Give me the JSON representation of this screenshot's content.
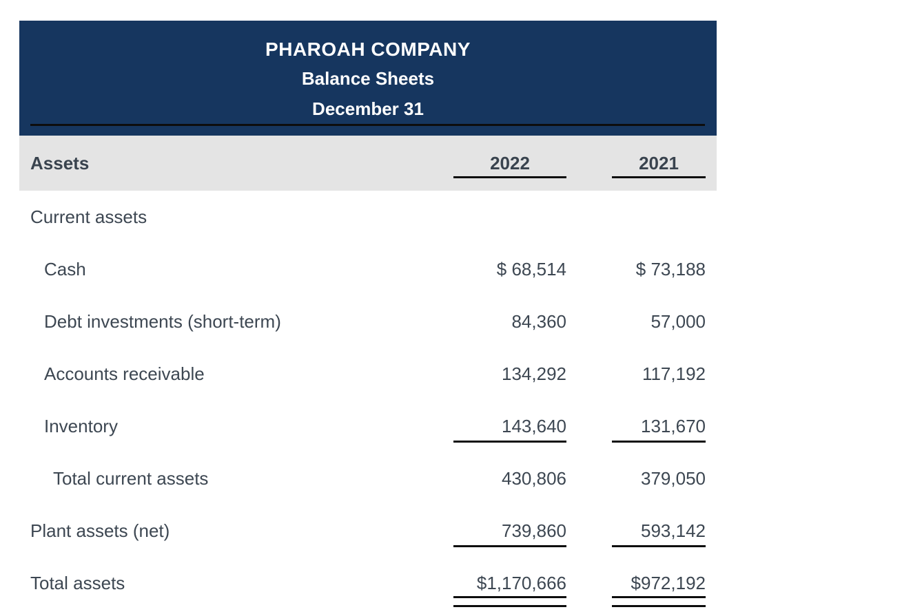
{
  "header": {
    "company": "PHAROAH COMPANY",
    "subtitle": "Balance Sheets",
    "date_line": "December 31"
  },
  "columns": {
    "section": "Assets",
    "year1": "2022",
    "year2": "2021"
  },
  "rows": [
    {
      "label": "Current assets",
      "v2022": "",
      "v2021": ""
    },
    {
      "label": "Cash",
      "v2022": "$ 68,514",
      "v2021": "$ 73,188"
    },
    {
      "label": "Debt investments (short-term)",
      "v2022": "84,360",
      "v2021": "57,000"
    },
    {
      "label": "Accounts receivable",
      "v2022": "134,292",
      "v2021": "117,192"
    },
    {
      "label": "Inventory",
      "v2022": "143,640",
      "v2021": "131,670"
    },
    {
      "label": "Total current assets",
      "v2022": "430,806",
      "v2021": "379,050"
    },
    {
      "label": "Plant assets (net)",
      "v2022": "739,860",
      "v2021": "593,142"
    },
    {
      "label": "Total assets",
      "v2022": "$1,170,666",
      "v2021": "$972,192"
    }
  ],
  "colors": {
    "title_bg": "#16365f",
    "section_bg": "#e4e4e4",
    "text": "#3d4752",
    "rule": "#0d0d0d"
  }
}
